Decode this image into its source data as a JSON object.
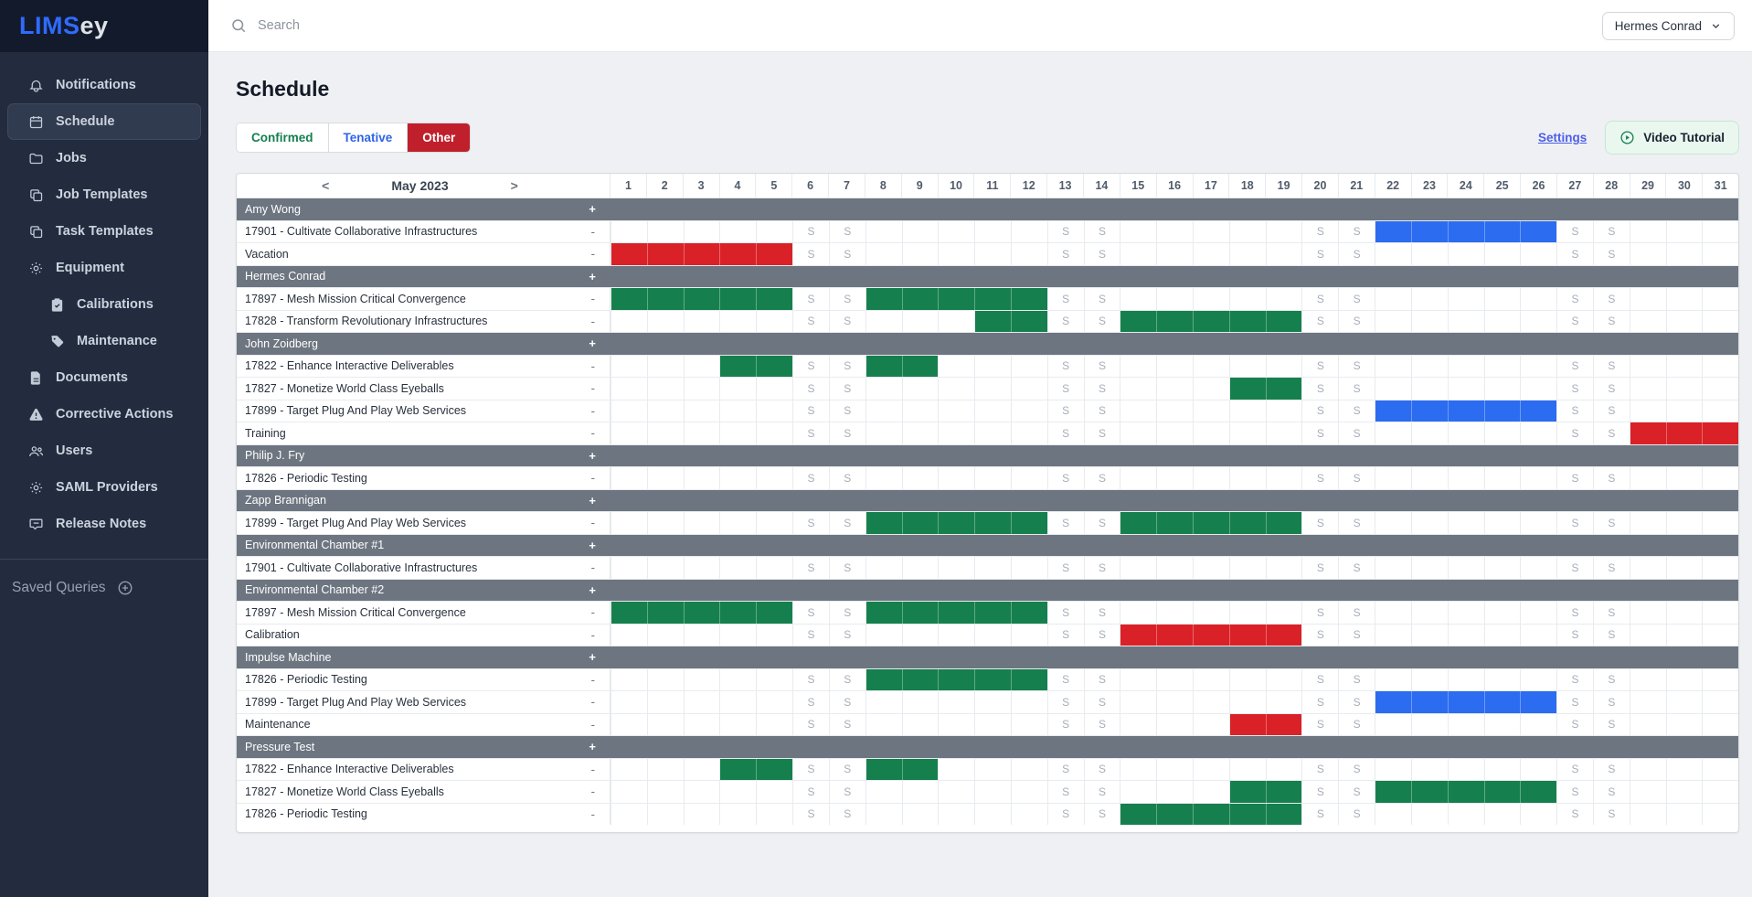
{
  "app": {
    "logo_primary": "LIMS",
    "logo_secondary": "ey"
  },
  "topbar": {
    "search_placeholder": "Search",
    "user_button_label": "Hermes Conrad"
  },
  "sidebar": {
    "items": [
      {
        "label": "Notifications",
        "icon": "bell-icon",
        "active": false,
        "indent": false
      },
      {
        "label": "Schedule",
        "icon": "calendar-icon",
        "active": true,
        "indent": false
      },
      {
        "label": "Jobs",
        "icon": "folder-icon",
        "active": false,
        "indent": false
      },
      {
        "label": "Job Templates",
        "icon": "copy-icon",
        "active": false,
        "indent": false
      },
      {
        "label": "Task Templates",
        "icon": "copy-icon",
        "active": false,
        "indent": false
      },
      {
        "label": "Equipment",
        "icon": "gear-icon",
        "active": false,
        "indent": false
      },
      {
        "label": "Calibrations",
        "icon": "clipboard-check-icon",
        "active": false,
        "indent": true
      },
      {
        "label": "Maintenance",
        "icon": "tag-icon",
        "active": false,
        "indent": true
      },
      {
        "label": "Documents",
        "icon": "document-icon",
        "active": false,
        "indent": false
      },
      {
        "label": "Corrective Actions",
        "icon": "warning-icon",
        "active": false,
        "indent": false
      },
      {
        "label": "Users",
        "icon": "users-icon",
        "active": false,
        "indent": false
      },
      {
        "label": "SAML Providers",
        "icon": "gear-icon",
        "active": false,
        "indent": false
      },
      {
        "label": "Release Notes",
        "icon": "chat-icon",
        "active": false,
        "indent": false
      }
    ],
    "saved_queries_label": "Saved Queries"
  },
  "page": {
    "title": "Schedule",
    "tabs": [
      {
        "label": "Confirmed"
      },
      {
        "label": "Tenative"
      },
      {
        "label": "Other"
      }
    ],
    "settings_link": "Settings",
    "video_tutorial_label": "Video Tutorial"
  },
  "colors": {
    "confirmed_text": "#157f4f",
    "tenative_text": "#2e63e9",
    "other_tab_bg": "#bf202c",
    "group_row_bg": "#6d7580",
    "sidebar_bg": "#222c3e",
    "logo_blue": "#2f6bff"
  },
  "calendar": {
    "prev_symbol": "<",
    "next_symbol": ">",
    "month_label": "May 2023",
    "days": [
      1,
      2,
      3,
      4,
      5,
      6,
      7,
      8,
      9,
      10,
      11,
      12,
      13,
      14,
      15,
      16,
      17,
      18,
      19,
      20,
      21,
      22,
      23,
      24,
      25,
      26,
      27,
      28,
      29,
      30,
      31
    ],
    "weekend_days": [
      6,
      7,
      13,
      14,
      20,
      21,
      27,
      28
    ],
    "weekend_label": "S",
    "group_add_symbol": "+",
    "task_remove_symbol": "-",
    "bar_colors": {
      "green": "#15804d",
      "red": "#da2127",
      "blue": "#2b6cf0"
    },
    "rows": [
      {
        "type": "group",
        "label": "Amy Wong"
      },
      {
        "type": "task",
        "label": "17901 - Cultivate Collaborative Infrastructures",
        "bars": [
          {
            "from": 22,
            "to": 26,
            "color": "blue"
          }
        ]
      },
      {
        "type": "task",
        "label": "Vacation",
        "bars": [
          {
            "from": 1,
            "to": 5,
            "color": "red"
          }
        ]
      },
      {
        "type": "group",
        "label": "Hermes Conrad"
      },
      {
        "type": "task",
        "label": "17897 - Mesh Mission Critical Convergence",
        "bars": [
          {
            "from": 1,
            "to": 5,
            "color": "green"
          },
          {
            "from": 8,
            "to": 12,
            "color": "green"
          }
        ]
      },
      {
        "type": "task",
        "label": "17828 - Transform Revolutionary Infrastructures",
        "bars": [
          {
            "from": 11,
            "to": 12,
            "color": "green"
          },
          {
            "from": 15,
            "to": 19,
            "color": "green"
          }
        ]
      },
      {
        "type": "group",
        "label": "John Zoidberg"
      },
      {
        "type": "task",
        "label": "17822 - Enhance Interactive Deliverables",
        "bars": [
          {
            "from": 4,
            "to": 5,
            "color": "green"
          },
          {
            "from": 8,
            "to": 9,
            "color": "green"
          }
        ]
      },
      {
        "type": "task",
        "label": "17827 - Monetize World Class Eyeballs",
        "bars": [
          {
            "from": 18,
            "to": 19,
            "color": "green"
          }
        ]
      },
      {
        "type": "task",
        "label": "17899 - Target Plug And Play Web Services",
        "bars": [
          {
            "from": 22,
            "to": 26,
            "color": "blue"
          }
        ]
      },
      {
        "type": "task",
        "label": "Training",
        "bars": [
          {
            "from": 29,
            "to": 31,
            "color": "red"
          }
        ]
      },
      {
        "type": "group",
        "label": "Philip J. Fry"
      },
      {
        "type": "task",
        "label": "17826 - Periodic Testing",
        "bars": []
      },
      {
        "type": "group",
        "label": "Zapp Brannigan"
      },
      {
        "type": "task",
        "label": "17899 - Target Plug And Play Web Services",
        "bars": [
          {
            "from": 8,
            "to": 12,
            "color": "green"
          },
          {
            "from": 15,
            "to": 19,
            "color": "green"
          }
        ]
      },
      {
        "type": "group",
        "label": "Environmental Chamber #1"
      },
      {
        "type": "task",
        "label": "17901 - Cultivate Collaborative Infrastructures",
        "bars": []
      },
      {
        "type": "group",
        "label": "Environmental Chamber #2"
      },
      {
        "type": "task",
        "label": "17897 - Mesh Mission Critical Convergence",
        "bars": [
          {
            "from": 1,
            "to": 5,
            "color": "green"
          },
          {
            "from": 8,
            "to": 12,
            "color": "green"
          }
        ]
      },
      {
        "type": "task",
        "label": "Calibration",
        "bars": [
          {
            "from": 15,
            "to": 19,
            "color": "red"
          }
        ]
      },
      {
        "type": "group",
        "label": "Impulse Machine"
      },
      {
        "type": "task",
        "label": "17826 - Periodic Testing",
        "bars": [
          {
            "from": 8,
            "to": 12,
            "color": "green"
          }
        ]
      },
      {
        "type": "task",
        "label": "17899 - Target Plug And Play Web Services",
        "bars": [
          {
            "from": 22,
            "to": 26,
            "color": "blue"
          }
        ]
      },
      {
        "type": "task",
        "label": "Maintenance",
        "bars": [
          {
            "from": 18,
            "to": 19,
            "color": "red"
          }
        ]
      },
      {
        "type": "group",
        "label": "Pressure Test"
      },
      {
        "type": "task",
        "label": "17822 - Enhance Interactive Deliverables",
        "bars": [
          {
            "from": 4,
            "to": 5,
            "color": "green"
          },
          {
            "from": 8,
            "to": 9,
            "color": "green"
          }
        ]
      },
      {
        "type": "task",
        "label": "17827 - Monetize World Class Eyeballs",
        "bars": [
          {
            "from": 18,
            "to": 19,
            "color": "green"
          },
          {
            "from": 22,
            "to": 26,
            "color": "green"
          }
        ]
      },
      {
        "type": "task",
        "label": "17826 - Periodic Testing",
        "bars": [
          {
            "from": 15,
            "to": 19,
            "color": "green"
          }
        ]
      }
    ]
  }
}
